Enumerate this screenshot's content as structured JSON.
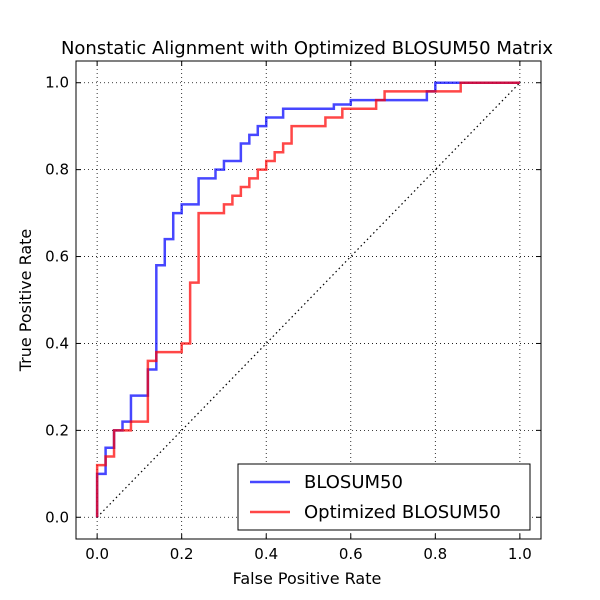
{
  "chart_data": {
    "type": "line",
    "title": "Nonstatic Alignment with Optimized BLOSUM50 Matrix",
    "xlabel": "False Positive Rate",
    "ylabel": "True Positive Rate",
    "xlim": [
      -0.05,
      1.05
    ],
    "ylim": [
      -0.05,
      1.05
    ],
    "xticks": [
      "0.0",
      "0.2",
      "0.4",
      "0.6",
      "0.8",
      "1.0"
    ],
    "yticks": [
      "0.0",
      "0.2",
      "0.4",
      "0.6",
      "0.8",
      "1.0"
    ],
    "grid": true,
    "legend_position": "lower-right",
    "diagonal": {
      "x": [
        0,
        1
      ],
      "y": [
        0,
        1
      ],
      "style": "dotted",
      "color": "#000000"
    },
    "series": [
      {
        "name": "BLOSUM50",
        "color": "#0000ff",
        "x": [
          0,
          0,
          0.02,
          0.02,
          0.04,
          0.04,
          0.06,
          0.06,
          0.08,
          0.08,
          0.12,
          0.12,
          0.14,
          0.14,
          0.16,
          0.16,
          0.18,
          0.18,
          0.2,
          0.2,
          0.24,
          0.24,
          0.28,
          0.28,
          0.3,
          0.3,
          0.34,
          0.34,
          0.36,
          0.36,
          0.38,
          0.38,
          0.4,
          0.4,
          0.44,
          0.44,
          0.56,
          0.56,
          0.6,
          0.6,
          0.78,
          0.78,
          0.8,
          0.8,
          1.0
        ],
        "y": [
          0,
          0.1,
          0.1,
          0.16,
          0.16,
          0.2,
          0.2,
          0.22,
          0.22,
          0.28,
          0.28,
          0.34,
          0.34,
          0.58,
          0.58,
          0.64,
          0.64,
          0.7,
          0.7,
          0.72,
          0.72,
          0.78,
          0.78,
          0.8,
          0.8,
          0.82,
          0.82,
          0.86,
          0.86,
          0.88,
          0.88,
          0.9,
          0.9,
          0.92,
          0.92,
          0.94,
          0.94,
          0.95,
          0.95,
          0.96,
          0.96,
          0.98,
          0.98,
          1.0,
          1.0
        ]
      },
      {
        "name": "Optimized BLOSUM50",
        "color": "#ff0000",
        "x": [
          0,
          0,
          0.02,
          0.02,
          0.04,
          0.04,
          0.06,
          0.06,
          0.08,
          0.08,
          0.12,
          0.12,
          0.14,
          0.14,
          0.2,
          0.2,
          0.22,
          0.22,
          0.24,
          0.24,
          0.3,
          0.3,
          0.32,
          0.32,
          0.34,
          0.34,
          0.36,
          0.36,
          0.38,
          0.38,
          0.4,
          0.4,
          0.42,
          0.42,
          0.44,
          0.44,
          0.46,
          0.46,
          0.54,
          0.54,
          0.58,
          0.58,
          0.66,
          0.66,
          0.68,
          0.68,
          0.78,
          0.78,
          0.86,
          0.86,
          1.0
        ],
        "y": [
          0,
          0.12,
          0.12,
          0.14,
          0.14,
          0.2,
          0.2,
          0.2,
          0.2,
          0.22,
          0.22,
          0.36,
          0.36,
          0.38,
          0.38,
          0.4,
          0.4,
          0.54,
          0.54,
          0.7,
          0.7,
          0.72,
          0.72,
          0.74,
          0.74,
          0.76,
          0.76,
          0.78,
          0.78,
          0.8,
          0.8,
          0.82,
          0.82,
          0.84,
          0.84,
          0.86,
          0.86,
          0.9,
          0.9,
          0.92,
          0.92,
          0.94,
          0.94,
          0.96,
          0.96,
          0.98,
          0.98,
          0.98,
          0.98,
          1.0,
          1.0
        ]
      }
    ]
  }
}
